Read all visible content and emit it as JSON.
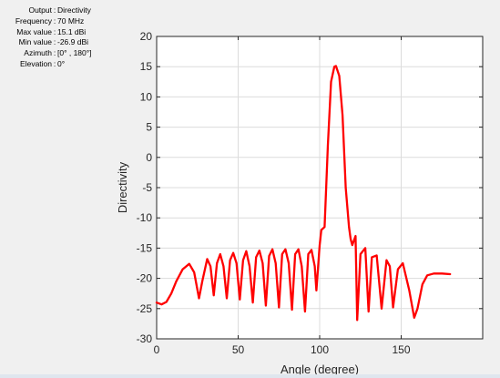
{
  "info": [
    {
      "key": "Output",
      "value": "Directivity"
    },
    {
      "key": "Frequency",
      "value": "70 MHz"
    },
    {
      "key": "Max value",
      "value": "15.1 dBi"
    },
    {
      "key": "Min value",
      "value": "-26.9 dBi"
    },
    {
      "key": "Azimuth",
      "value": "[0° , 180°]"
    },
    {
      "key": "Elevation",
      "value": "0°"
    }
  ],
  "chart_data": {
    "type": "line",
    "title": "",
    "xlabel": "Angle (degree)",
    "ylabel": "Directivity",
    "xlim": [
      0,
      200
    ],
    "ylim": [
      -30,
      20
    ],
    "xticks": [
      0,
      50,
      100,
      150
    ],
    "yticks": [
      20,
      15,
      10,
      5,
      0,
      -5,
      -10,
      -15,
      -20,
      -25,
      -30
    ],
    "grid": true,
    "series": [
      {
        "color": "#ff0000",
        "x": [
          0,
          3,
          6,
          9,
          12,
          16,
          20,
          23,
          26,
          28,
          31,
          33,
          35,
          37,
          39,
          41,
          43,
          45,
          47,
          49,
          51,
          53,
          55,
          57,
          59,
          61,
          63,
          65,
          67,
          69,
          71,
          73,
          75,
          77,
          79,
          81,
          83,
          85,
          87,
          89,
          91,
          93,
          95,
          97,
          98,
          100,
          101,
          103,
          105,
          107,
          109,
          110,
          112,
          114,
          116,
          118,
          119,
          120,
          122,
          123,
          125,
          128,
          130,
          132,
          135,
          138,
          141,
          143,
          145,
          148,
          151,
          155,
          158,
          160,
          163,
          166,
          170,
          175,
          180
        ],
        "values": [
          -24.0,
          -24.3,
          -23.9,
          -22.5,
          -20.5,
          -18.5,
          -17.6,
          -19.0,
          -23.3,
          -20.5,
          -16.8,
          -18.0,
          -22.8,
          -17.5,
          -16.0,
          -18.0,
          -23.3,
          -17.0,
          -15.8,
          -17.5,
          -23.5,
          -17.0,
          -15.5,
          -18.0,
          -24.0,
          -16.5,
          -15.4,
          -17.5,
          -24.5,
          -16.3,
          -15.2,
          -17.5,
          -24.8,
          -16.0,
          -15.2,
          -17.5,
          -25.2,
          -16.0,
          -15.2,
          -18.0,
          -25.5,
          -16.0,
          -15.3,
          -18.0,
          -22.0,
          -14.5,
          -12.0,
          -11.5,
          2.0,
          12.5,
          15.0,
          15.1,
          13.5,
          7.0,
          -5.0,
          -11.5,
          -13.5,
          -14.5,
          -13.0,
          -26.9,
          -16.0,
          -15.0,
          -25.5,
          -16.5,
          -16.2,
          -25.0,
          -17.0,
          -18.0,
          -24.8,
          -18.5,
          -17.5,
          -22.0,
          -26.5,
          -25.0,
          -21.0,
          -19.5,
          -19.2,
          -19.2,
          -19.3
        ]
      }
    ]
  }
}
